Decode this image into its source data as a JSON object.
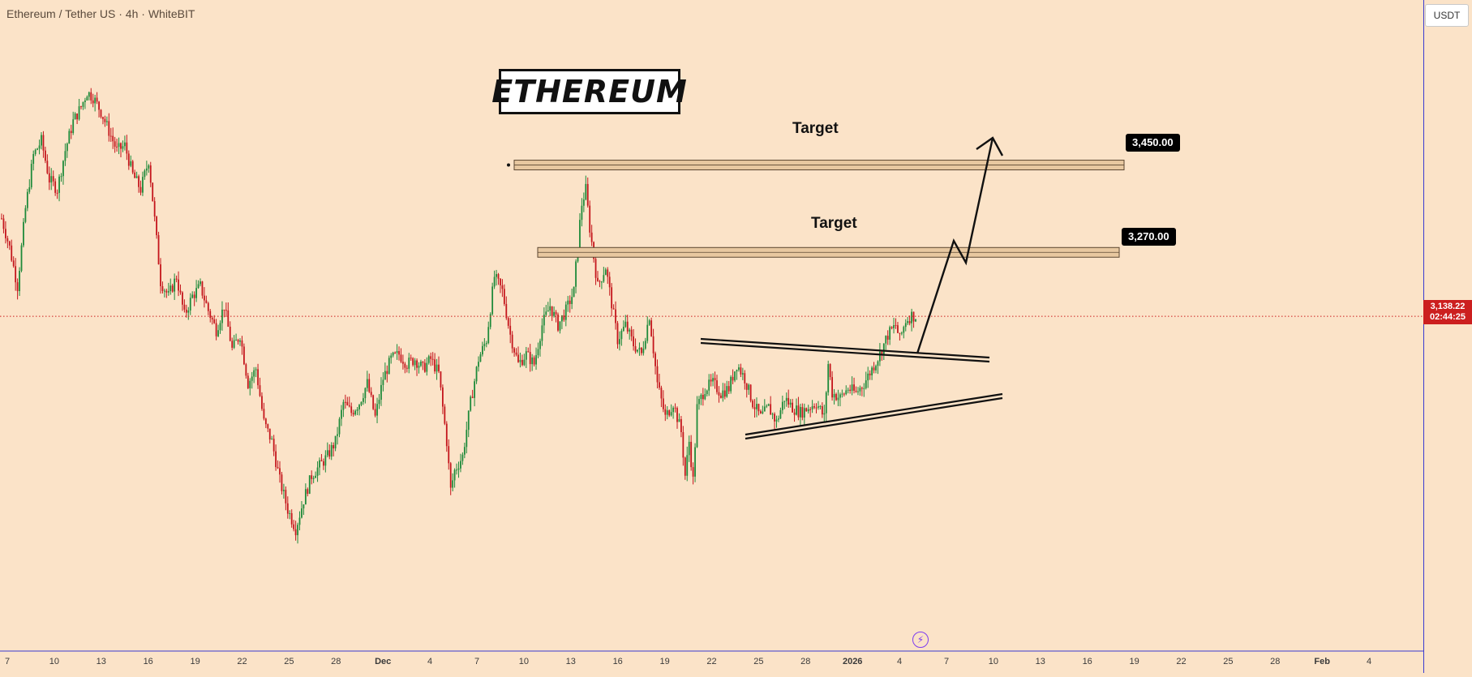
{
  "header": {
    "symbol_title": "Ethereum / Tether US · 4h · WhiteBIT"
  },
  "price_axis": {
    "currency": "USDT",
    "last_price": "3,138.22",
    "countdown": "02:44:25"
  },
  "annotations": {
    "title": "ETHEREUM",
    "target_upper_label": "Target",
    "target_upper_price": "3,450.00",
    "target_lower_label": "Target",
    "target_lower_price": "3,270.00"
  },
  "colors": {
    "background": "#fbe3c8",
    "up_candle": "#1e8a3a",
    "down_candle": "#c4161c",
    "zone_fill": "#e8c8a0",
    "last_price": "#cc1f1f",
    "axis_line": "#3a3ad0",
    "lightning_icon": "#7d3cf0"
  },
  "icons": {
    "bottom_marker": "lightning-icon"
  },
  "chart_data": {
    "type": "candlestick",
    "symbol": "Ethereum / Tether US",
    "interval": "4h",
    "exchange": "WhiteBIT",
    "ylim": [
      2470,
      3740
    ],
    "y_ticks": [
      2500,
      2550,
      2600,
      2650,
      2700,
      2750,
      2800,
      2850,
      2900,
      2950,
      3000,
      3050,
      3100,
      3150,
      3200,
      3250,
      3300,
      3350,
      3400,
      3450,
      3500,
      3550,
      3600,
      3650
    ],
    "x_ticks": [
      "7",
      "10",
      "13",
      "16",
      "19",
      "22",
      "25",
      "28",
      "Dec",
      "4",
      "7",
      "10",
      "13",
      "16",
      "19",
      "22",
      "25",
      "28",
      "2026",
      "4",
      "7",
      "10",
      "13",
      "16",
      "19",
      "22",
      "25",
      "28",
      "Feb",
      "4"
    ],
    "x_tick_bold": [
      "Dec",
      "2026",
      "Feb"
    ],
    "price_path": [
      [
        0,
        3340
      ],
      [
        4,
        3280
      ],
      [
        8,
        3200
      ],
      [
        12,
        3360
      ],
      [
        16,
        3470
      ],
      [
        20,
        3500
      ],
      [
        24,
        3420
      ],
      [
        28,
        3400
      ],
      [
        32,
        3480
      ],
      [
        36,
        3540
      ],
      [
        40,
        3570
      ],
      [
        43,
        3600
      ],
      [
        46,
        3590
      ],
      [
        50,
        3560
      ],
      [
        54,
        3520
      ],
      [
        58,
        3480
      ],
      [
        62,
        3490
      ],
      [
        66,
        3430
      ],
      [
        70,
        3400
      ],
      [
        74,
        3460
      ],
      [
        76,
        3380
      ],
      [
        80,
        3210
      ],
      [
        84,
        3180
      ],
      [
        88,
        3220
      ],
      [
        92,
        3140
      ],
      [
        96,
        3180
      ],
      [
        100,
        3200
      ],
      [
        104,
        3150
      ],
      [
        108,
        3110
      ],
      [
        112,
        3160
      ],
      [
        116,
        3070
      ],
      [
        120,
        3100
      ],
      [
        124,
        3000
      ],
      [
        128,
        3030
      ],
      [
        132,
        2920
      ],
      [
        136,
        2880
      ],
      [
        140,
        2800
      ],
      [
        144,
        2740
      ],
      [
        148,
        2700
      ],
      [
        152,
        2760
      ],
      [
        156,
        2810
      ],
      [
        160,
        2830
      ],
      [
        164,
        2850
      ],
      [
        168,
        2880
      ],
      [
        172,
        2960
      ],
      [
        176,
        2940
      ],
      [
        180,
        2960
      ],
      [
        184,
        3000
      ],
      [
        188,
        2930
      ],
      [
        192,
        3010
      ],
      [
        196,
        3050
      ],
      [
        200,
        3060
      ],
      [
        204,
        3040
      ],
      [
        208,
        3050
      ],
      [
        212,
        3030
      ],
      [
        216,
        3050
      ],
      [
        220,
        3020
      ],
      [
        224,
        2880
      ],
      [
        226,
        2780
      ],
      [
        228,
        2820
      ],
      [
        232,
        2850
      ],
      [
        236,
        2960
      ],
      [
        240,
        3050
      ],
      [
        244,
        3090
      ],
      [
        248,
        3220
      ],
      [
        252,
        3190
      ],
      [
        256,
        3100
      ],
      [
        260,
        3040
      ],
      [
        264,
        3060
      ],
      [
        268,
        3040
      ],
      [
        272,
        3120
      ],
      [
        276,
        3160
      ],
      [
        280,
        3120
      ],
      [
        284,
        3150
      ],
      [
        288,
        3190
      ],
      [
        290,
        3290
      ],
      [
        292,
        3370
      ],
      [
        294,
        3400
      ],
      [
        296,
        3320
      ],
      [
        300,
        3200
      ],
      [
        304,
        3240
      ],
      [
        306,
        3190
      ],
      [
        310,
        3090
      ],
      [
        314,
        3120
      ],
      [
        318,
        3080
      ],
      [
        322,
        3060
      ],
      [
        326,
        3140
      ],
      [
        330,
        3000
      ],
      [
        334,
        2930
      ],
      [
        338,
        2960
      ],
      [
        342,
        2900
      ],
      [
        344,
        2810
      ],
      [
        346,
        2880
      ],
      [
        348,
        2800
      ],
      [
        350,
        2950
      ],
      [
        354,
        2990
      ],
      [
        358,
        3000
      ],
      [
        362,
        2980
      ],
      [
        366,
        2990
      ],
      [
        370,
        3040
      ],
      [
        374,
        3010
      ],
      [
        378,
        2960
      ],
      [
        382,
        2930
      ],
      [
        386,
        2950
      ],
      [
        390,
        2920
      ],
      [
        394,
        2970
      ],
      [
        398,
        2950
      ],
      [
        402,
        2940
      ],
      [
        406,
        2950
      ],
      [
        410,
        2960
      ],
      [
        414,
        2930
      ],
      [
        416,
        3040
      ],
      [
        418,
        2980
      ],
      [
        422,
        2970
      ],
      [
        426,
        2990
      ],
      [
        430,
        2980
      ],
      [
        434,
        3000
      ],
      [
        438,
        3030
      ],
      [
        442,
        3060
      ],
      [
        446,
        3100
      ],
      [
        450,
        3120
      ],
      [
        452,
        3090
      ],
      [
        455,
        3130
      ],
      [
        458,
        3140
      ],
      [
        460,
        3138
      ]
    ],
    "last_price": 3138.22
  }
}
